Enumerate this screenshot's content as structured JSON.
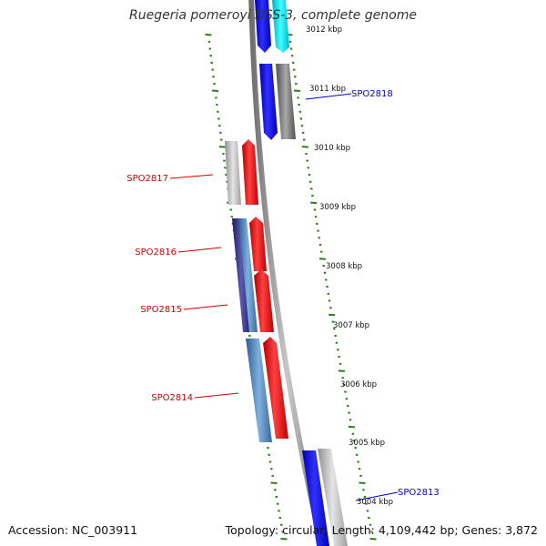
{
  "title": "Ruegeria pomeroyi DSS-3, complete genome",
  "footer": {
    "accession": "Accession: NC_003911",
    "summary": "Topology: circular; Length: 4,109,442 bp; Genes: 3,872"
  },
  "colors": {
    "backbone": "#8a8a8a",
    "tick": "#2e7d1a",
    "forward_label": "#0000cc",
    "reverse_label": "#cc0000"
  },
  "kbp_labels": [
    "3012 kbp",
    "3011 kbp",
    "3010 kbp",
    "3009 kbp",
    "3008 kbp",
    "3007 kbp",
    "3006 kbp",
    "3005 kbp",
    "3004 kbp"
  ],
  "gene_labels": [
    {
      "name": "SPO2818",
      "strand": "forward"
    },
    {
      "name": "SPO2817",
      "strand": "reverse"
    },
    {
      "name": "SPO2816",
      "strand": "reverse"
    },
    {
      "name": "SPO2815",
      "strand": "reverse"
    },
    {
      "name": "SPO2814",
      "strand": "reverse"
    },
    {
      "name": "SPO2813",
      "strand": "forward"
    }
  ]
}
